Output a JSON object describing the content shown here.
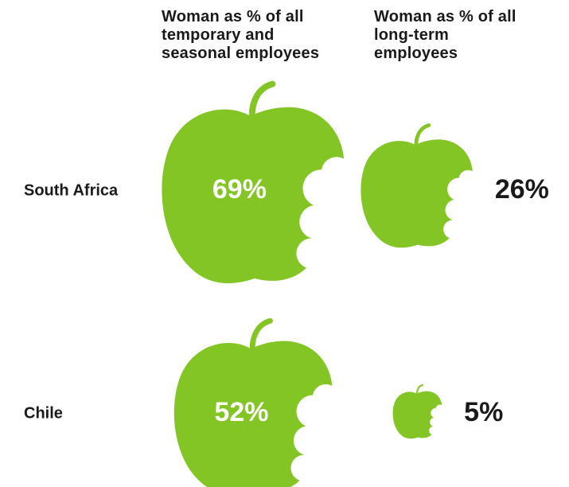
{
  "colors": {
    "apple": "#82c524",
    "text": "#1a1a1a",
    "inner_text": "#ffffff"
  },
  "chart_data": {
    "type": "bubble",
    "icon": "bitten-apple-icon",
    "series": [
      {
        "header": "Woman as % of all\ntemporary and\nseasonal employees"
      },
      {
        "header": "Woman as % of all\nlong-term\nemployees"
      }
    ],
    "rows": [
      {
        "label": "South Africa",
        "values": [
          69,
          26
        ],
        "value_labels": [
          "69%",
          "26%"
        ]
      },
      {
        "label": "Chile",
        "values": [
          52,
          5
        ],
        "value_labels": [
          "52%",
          "5%"
        ]
      }
    ]
  }
}
